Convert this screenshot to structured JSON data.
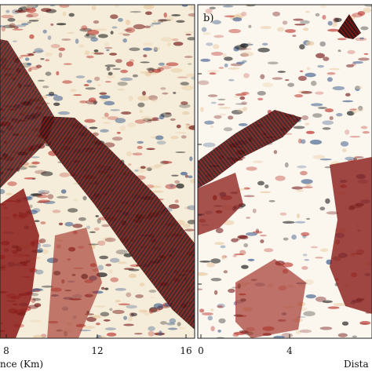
{
  "panels": [
    {
      "id": "a",
      "label": "",
      "xaxis": {
        "label_fragment": "nce (Km)",
        "ticks": [
          "8",
          "12",
          "16"
        ]
      }
    },
    {
      "id": "b",
      "label": "b)",
      "xaxis": {
        "label_fragment": "Dista",
        "ticks": [
          "0",
          "4"
        ]
      }
    }
  ],
  "colors": {
    "background": "#ffffff",
    "wiggle_dark": "#6e1010",
    "wiggle_mid": "#b8322a",
    "wiggle_light": "#e8c9a0",
    "trace_black": "#1a1a1a",
    "trace_blue": "#3a5a8a"
  }
}
